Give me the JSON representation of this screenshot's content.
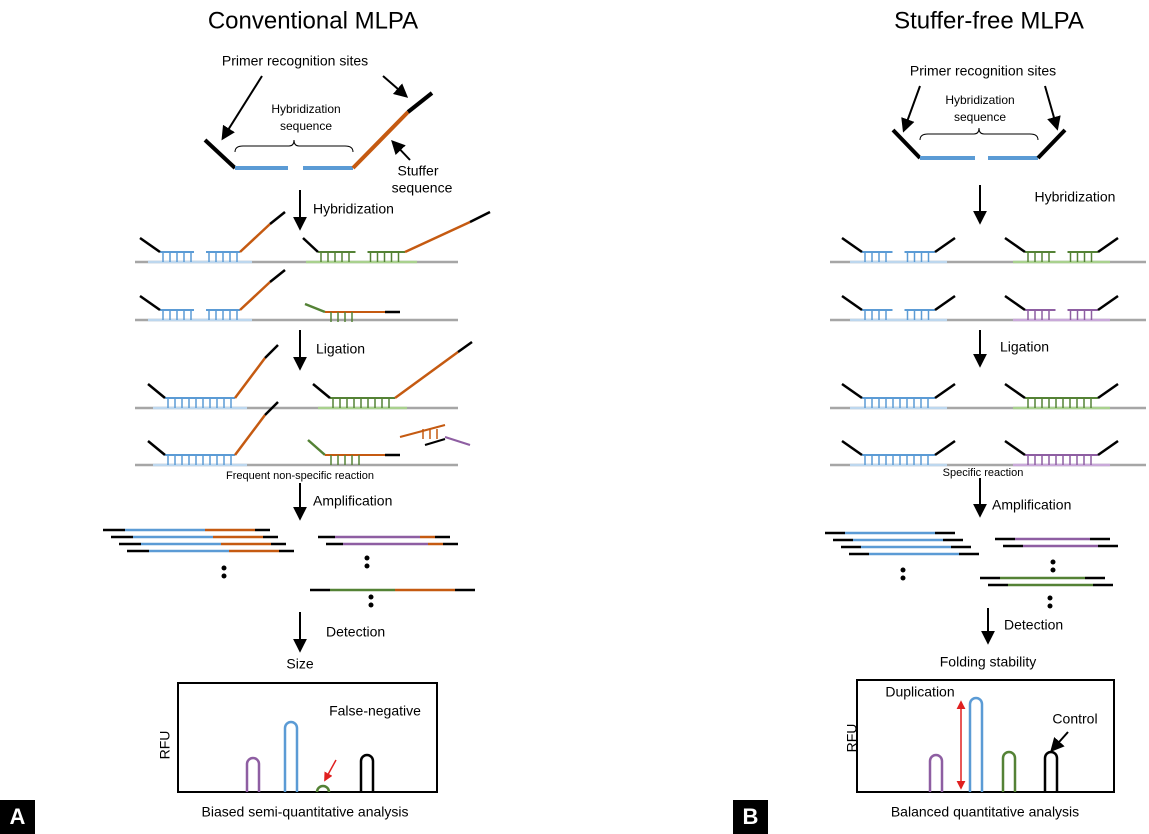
{
  "panel_a": {
    "label": "A",
    "title": "Conventional MLPA",
    "primer_sites": "Primer recognition sites",
    "hybridization_sequence": [
      "Hybridization",
      "sequence"
    ],
    "stuffer_sequence": [
      "Stuffer",
      "sequence"
    ],
    "steps": [
      "Hybridization",
      "Ligation",
      "Amplification",
      "Detection"
    ],
    "reaction_note": "Frequent non-specific reaction",
    "x_axis_label": "Size",
    "y_axis_label": "RFU",
    "annotation": "False-negative",
    "caption": "Biased semi-quantitative analysis"
  },
  "panel_b": {
    "label": "B",
    "title": "Stuffer-free MLPA",
    "primer_sites": "Primer recognition sites",
    "hybridization_sequence": [
      "Hybridization",
      "sequence"
    ],
    "steps": [
      "Hybridization",
      "Ligation",
      "Amplification",
      "Detection"
    ],
    "reaction_note": "Specific reaction",
    "x_axis_label": "Folding stability",
    "y_axis_label": "RFU",
    "annotations": [
      "Duplication",
      "Control"
    ],
    "caption": "Balanced quantitative analysis"
  }
}
